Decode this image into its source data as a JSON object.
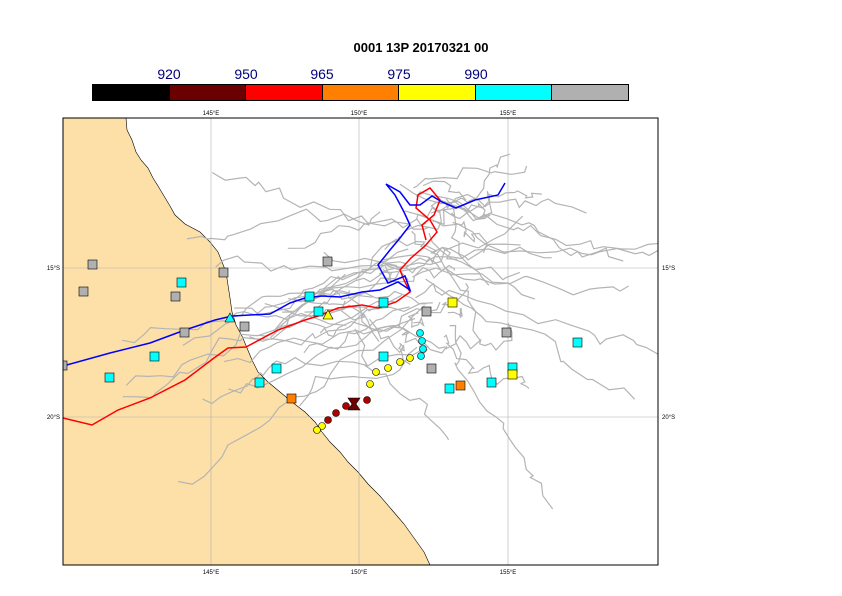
{
  "title": "0001 13P 20170321 00",
  "colorbar": {
    "labels": [
      "920",
      "950",
      "965",
      "975",
      "990"
    ],
    "colors": [
      "#000000",
      "#6b0000",
      "#ff0000",
      "#ff8000",
      "#ffff00",
      "#00ffff",
      "#b0b0b0"
    ]
  },
  "map": {
    "land_color": "#fde0a8",
    "grid_color": "#b0b0b0",
    "lon_ticks": [
      "145°E",
      "150°E",
      "155°E"
    ],
    "lat_ticks": [
      "15°S",
      "20°S"
    ]
  },
  "tracks": {
    "ensemble_color": "#b4b4b4",
    "observed_color": "#0000ff",
    "forecast_color": "#ff0000"
  },
  "markers": {
    "current_position_color": "#6b0000"
  }
}
